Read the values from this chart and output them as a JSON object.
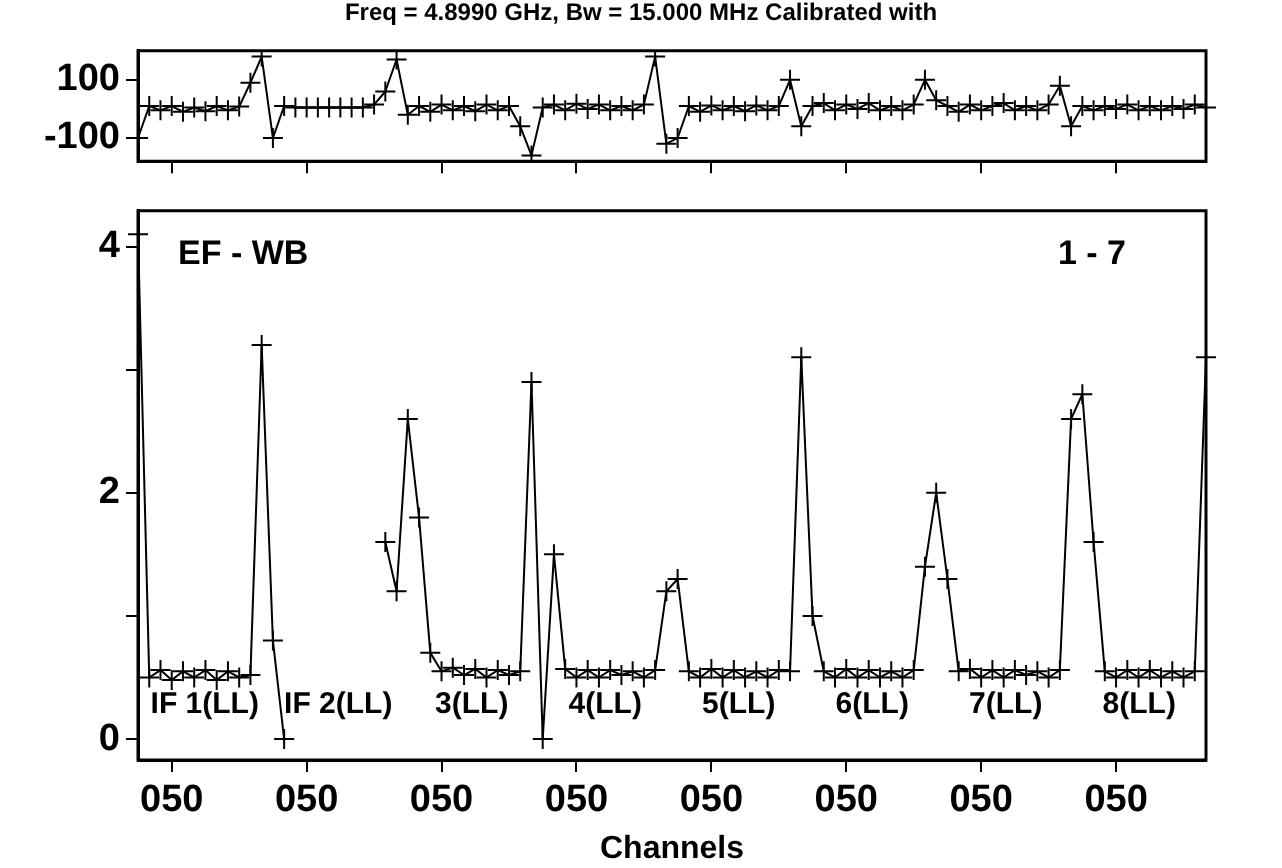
{
  "chart_data": [
    {
      "type": "line",
      "title": "Freq = 4.8990 GHz, Bw = 15.000 MHz  Calibrated with",
      "marker": "cross",
      "legend": false,
      "grid": false,
      "tick_labels": "y",
      "categories": [
        null,
        null,
        null,
        "050",
        null,
        null,
        null,
        null,
        null,
        null,
        null,
        null,
        null,
        null,
        null,
        "050",
        null,
        null,
        null,
        null,
        null,
        null,
        null,
        null,
        null,
        null,
        null,
        "050",
        null,
        null,
        null,
        null,
        null,
        null,
        null,
        null,
        null,
        null,
        null,
        "050",
        null,
        null,
        null,
        null,
        null,
        null,
        null,
        null,
        null,
        null,
        null,
        "050",
        null,
        null,
        null,
        null,
        null,
        null,
        null,
        null,
        null,
        null,
        null,
        "050",
        null,
        null,
        null,
        null,
        null,
        null,
        null,
        null,
        null,
        null,
        null,
        "050",
        null,
        null,
        null,
        null,
        null,
        null,
        null,
        null,
        null,
        null,
        null,
        "050",
        null,
        null,
        null,
        null,
        null,
        null,
        null,
        null
      ],
      "ylim": [
        -180,
        200
      ],
      "yticks": [
        100,
        -100
      ],
      "series": [
        {
          "color": "#000000",
          "values": [
            -100,
            10,
            -5,
            10,
            -10,
            5,
            -8,
            10,
            -5,
            8,
            90,
            180,
            -100,
            10,
            5,
            5,
            5,
            5,
            5,
            5,
            5,
            15,
            60,
            170,
            -20,
            10,
            -10,
            15,
            -5,
            10,
            -8,
            15,
            -5,
            10,
            -60,
            -160,
            5,
            15,
            -5,
            18,
            0,
            15,
            -5,
            10,
            -5,
            15,
            180,
            -120,
            -100,
            10,
            -10,
            12,
            -5,
            10,
            -8,
            12,
            -5,
            10,
            100,
            -60,
            10,
            20,
            -5,
            15,
            0,
            20,
            -5,
            10,
            -5,
            15,
            100,
            30,
            10,
            -10,
            15,
            -5,
            10,
            20,
            -5,
            10,
            -5,
            15,
            80,
            -60,
            10,
            -5,
            10,
            0,
            15,
            -5,
            10,
            -5,
            10,
            0,
            15,
            5
          ]
        }
      ]
    },
    {
      "type": "line",
      "xlabel": "Channels",
      "marker": "cross",
      "legend": false,
      "grid": false,
      "categories": [
        null,
        null,
        null,
        "050",
        null,
        null,
        null,
        null,
        null,
        null,
        null,
        null,
        null,
        null,
        null,
        "050",
        null,
        null,
        null,
        null,
        null,
        null,
        null,
        null,
        null,
        null,
        null,
        "050",
        null,
        null,
        null,
        null,
        null,
        null,
        null,
        null,
        null,
        null,
        null,
        "050",
        null,
        null,
        null,
        null,
        null,
        null,
        null,
        null,
        null,
        null,
        null,
        "050",
        null,
        null,
        null,
        null,
        null,
        null,
        null,
        null,
        null,
        null,
        null,
        "050",
        null,
        null,
        null,
        null,
        null,
        null,
        null,
        null,
        null,
        null,
        null,
        "050",
        null,
        null,
        null,
        null,
        null,
        null,
        null,
        null,
        null,
        null,
        null,
        "050",
        null,
        null,
        null,
        null,
        null,
        null,
        null,
        null
      ],
      "ylim": [
        -0.17,
        4.29
      ],
      "yticks": [
        0,
        {
          "value": 1,
          "label": null
        },
        2,
        {
          "value": 3,
          "label": null
        },
        4
      ],
      "annotations": [
        "EF - WB",
        "1 - 7",
        "IF 1(LL)",
        "IF 2(LL)",
        "3(LL)",
        "4(LL)",
        "5(LL)",
        "6(LL)",
        "7(LL)",
        "8(LL)"
      ],
      "series": [
        {
          "color": "#000000",
          "values": [
            4.1,
            0.5,
            0.56,
            0.48,
            0.55,
            0.5,
            0.56,
            0.48,
            0.55,
            0.5,
            0.52,
            3.2,
            0.8,
            0.0,
            null,
            null,
            null,
            null,
            null,
            null,
            null,
            null,
            1.6,
            1.2,
            2.6,
            1.8,
            0.7,
            0.55,
            0.58,
            0.52,
            0.57,
            0.5,
            0.56,
            0.52,
            0.55,
            2.9,
            0.0,
            1.5,
            0.57,
            0.5,
            0.56,
            0.5,
            0.56,
            0.52,
            0.55,
            0.5,
            0.56,
            1.2,
            1.3,
            0.55,
            0.5,
            0.57,
            0.5,
            0.56,
            0.5,
            0.55,
            0.5,
            0.56,
            0.55,
            3.1,
            1.0,
            0.55,
            0.5,
            0.57,
            0.5,
            0.56,
            0.5,
            0.55,
            0.5,
            0.56,
            1.4,
            2.0,
            1.3,
            0.55,
            0.57,
            0.5,
            0.56,
            0.5,
            0.56,
            0.52,
            0.55,
            0.5,
            0.56,
            2.6,
            2.8,
            1.6,
            0.55,
            0.5,
            0.56,
            0.5,
            0.56,
            0.5,
            0.55,
            0.5,
            0.55,
            3.1
          ]
        }
      ]
    }
  ]
}
